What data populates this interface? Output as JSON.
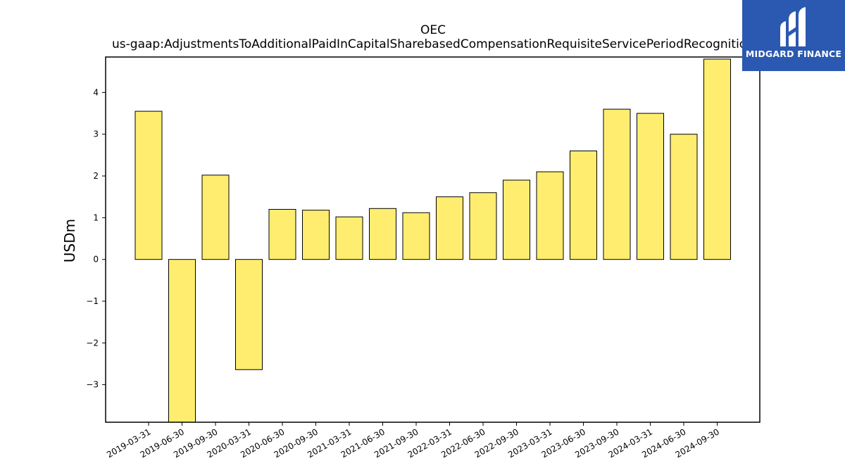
{
  "brand": {
    "name": "MIDGARD FINANCE",
    "color": "#2b58b0"
  },
  "chart_data": {
    "type": "bar",
    "title": "OEC",
    "subtitle": "us-gaap:AdjustmentsToAdditionalPaidInCapitalSharebasedCompensationRequisiteServicePeriodRecognition",
    "xlabel": "",
    "ylabel": "USDm",
    "bar_color": "#ffed6f",
    "grid": false,
    "ylim": [
      -3.9,
      4.85
    ],
    "yticks": [
      -3,
      -2,
      -1,
      0,
      1,
      2,
      3,
      4
    ],
    "categories": [
      "2019-03-31",
      "2019-06-30",
      "2019-09-30",
      "2020-03-31",
      "2020-06-30",
      "2020-09-30",
      "2021-03-31",
      "2021-06-30",
      "2021-09-30",
      "2022-03-31",
      "2022-06-30",
      "2022-09-30",
      "2023-03-31",
      "2023-06-30",
      "2023-09-30",
      "2024-03-31",
      "2024-06-30",
      "2024-09-30"
    ],
    "values": [
      3.55,
      -3.9,
      2.02,
      -2.64,
      1.2,
      1.18,
      1.02,
      1.22,
      1.12,
      1.5,
      1.6,
      1.9,
      2.1,
      2.6,
      3.6,
      3.5,
      3.0,
      4.8
    ]
  }
}
